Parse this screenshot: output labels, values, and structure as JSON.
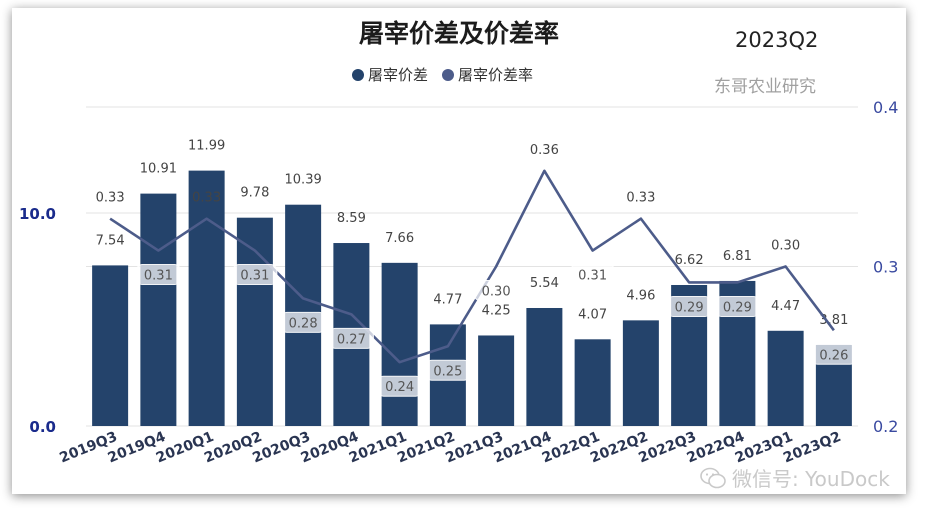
{
  "chart_data": {
    "type": "bar",
    "title": "屠宰价差及价差率",
    "period_label": "2023Q2",
    "source_label": "东哥农业研究",
    "categories": [
      "2019Q3",
      "2019Q4",
      "2020Q1",
      "2020Q2",
      "2020Q3",
      "2020Q4",
      "2021Q1",
      "2021Q2",
      "2021Q3",
      "2021Q4",
      "2022Q1",
      "2022Q2",
      "2022Q3",
      "2022Q4",
      "2023Q1",
      "2023Q2"
    ],
    "series": [
      {
        "name": "屠宰价差",
        "type": "bar",
        "axis": "left",
        "color": "#24436b",
        "values": [
          7.54,
          10.91,
          11.99,
          9.78,
          10.39,
          8.59,
          7.66,
          4.77,
          4.25,
          5.54,
          4.07,
          4.96,
          6.62,
          6.81,
          4.47,
          3.81
        ]
      },
      {
        "name": "屠宰价差率",
        "type": "line",
        "axis": "right",
        "color": "#4d5c8a",
        "values": [
          0.33,
          0.31,
          0.33,
          0.31,
          0.28,
          0.27,
          0.24,
          0.25,
          0.3,
          0.36,
          0.31,
          0.33,
          0.29,
          0.29,
          0.3,
          0.26
        ]
      }
    ],
    "y_left": {
      "ticks": [
        "0.0",
        "10.0"
      ],
      "range": [
        0,
        15
      ]
    },
    "y_right": {
      "ticks": [
        "0.2",
        "0.3",
        "0.4"
      ],
      "range": [
        0.2,
        0.4
      ]
    },
    "legend_position": "top-center"
  },
  "watermark": "微信号: YouDock",
  "colors": {
    "bar": "#24436b",
    "line": "#4d5c8a",
    "left_axis_text": "#1a2b8c",
    "right_axis_text": "#3a4aa0"
  }
}
